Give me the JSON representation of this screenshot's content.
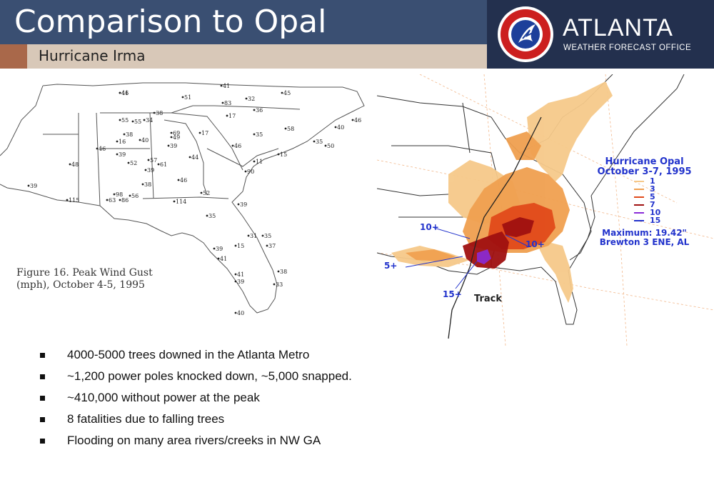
{
  "header": {
    "title": "Comparison to Opal",
    "subtitle": "Hurricane Irma",
    "logo_city": "ATLANTA",
    "logo_office": "WEATHER FORECAST OFFICE",
    "seal_text": "NATIONAL WEATHER SERVICE"
  },
  "left_map": {
    "caption_line1": "Figure 16.  Peak Wind Gust",
    "caption_line2": "(mph), October 4-5, 1995",
    "stations": [
      "46",
      "51",
      "41",
      "32",
      "45",
      "83",
      "55",
      "36",
      "38",
      "55",
      "34",
      "17",
      "38",
      "16",
      "40",
      "35",
      "49",
      "58",
      "46",
      "39",
      "35",
      "40",
      "46",
      "50",
      "46",
      "69",
      "39",
      "57",
      "61",
      "17",
      "44",
      "15",
      "11",
      "52",
      "39",
      "90",
      "46",
      "48",
      "39",
      "38",
      "98",
      "56",
      "115",
      "63",
      "86",
      "114",
      "52",
      "39",
      "35",
      "31",
      "35",
      "39",
      "15",
      "41",
      "37",
      "41",
      "38",
      "39",
      "33",
      "40",
      "41"
    ]
  },
  "right_map": {
    "legend_title": "Hurricane Opal",
    "legend_dates": "October 3-7, 1995",
    "legend_values": [
      "1",
      "3",
      "5",
      "7",
      "10",
      "15"
    ],
    "legend_colors": [
      "#f6c98a",
      "#f0a050",
      "#e04a1a",
      "#a01010",
      "#8a2bd8",
      "#2233cc"
    ],
    "maximum": "Maximum:  19.42\"",
    "maximum_location": "Brewton 3 ENE, AL",
    "contour_labels": [
      "10+",
      "10+",
      "5+",
      "15+"
    ],
    "track_label": "Track"
  },
  "bullets": [
    "4000-5000 trees downed in the Atlanta Metro",
    "~1,200 power poles knocked down, ~5,000 snapped.",
    "~410,000 without power at the peak",
    "8 fatalities due to falling trees",
    "Flooding on many area rivers/creeks in NW GA"
  ]
}
